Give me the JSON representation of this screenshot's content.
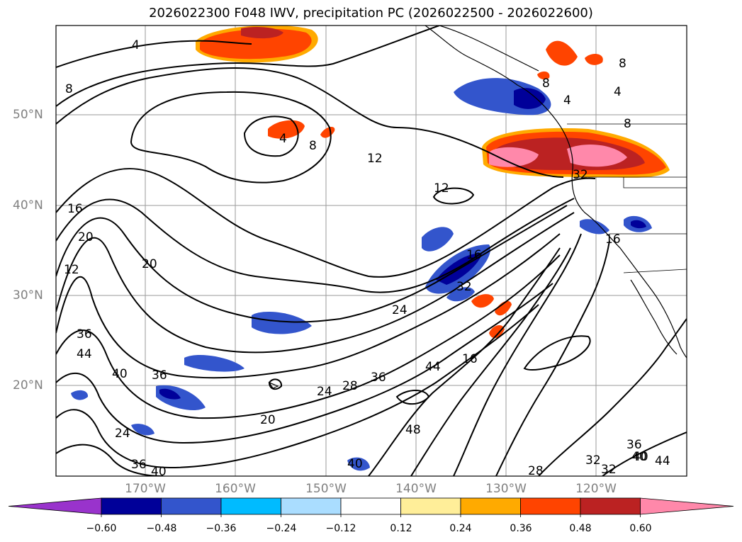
{
  "title": "2026022300 F048 IWV, precipitation PC (2026022500 - 2026022600)",
  "lat_labels": [
    "50°N",
    "40°N",
    "30°N",
    "20°N"
  ],
  "lon_labels": [
    "170°W",
    "160°W",
    "150°W",
    "140°W",
    "130°W",
    "120°W"
  ],
  "colorbar": {
    "tick_labels": [
      "−0.60",
      "−0.48",
      "−0.36",
      "−0.24",
      "−0.12",
      "0.12",
      "0.24",
      "0.36",
      "0.48",
      "0.60"
    ],
    "colors": [
      "#9933cc",
      "#000099",
      "#3355cc",
      "#00bbff",
      "#aaddff",
      "#ffffff",
      "#ffee99",
      "#ffaa00",
      "#ff4400",
      "#bb2222",
      "#ff88aa"
    ]
  },
  "contour_labels": [
    "4",
    "8",
    "4",
    "8",
    "12",
    "12",
    "16",
    "20",
    "20",
    "12",
    "36",
    "44",
    "40",
    "36",
    "24",
    "36",
    "40",
    "20",
    "24",
    "28",
    "36",
    "44",
    "48",
    "40",
    "16",
    "32",
    "24",
    "40",
    "28",
    "32",
    "32",
    "36",
    "40",
    "44",
    "4",
    "8",
    "8",
    "4",
    "8",
    "16",
    "16",
    "32"
  ],
  "colors": {
    "precip_positive_high": "#ff88aa",
    "precip_positive_mid": "#bb2222",
    "precip_positive": "#ff4400",
    "precip_light": "#ffaa00",
    "precip_negative": "#3355cc",
    "precip_negative_high": "#000099",
    "precip_negative_light": "#00bbff"
  }
}
